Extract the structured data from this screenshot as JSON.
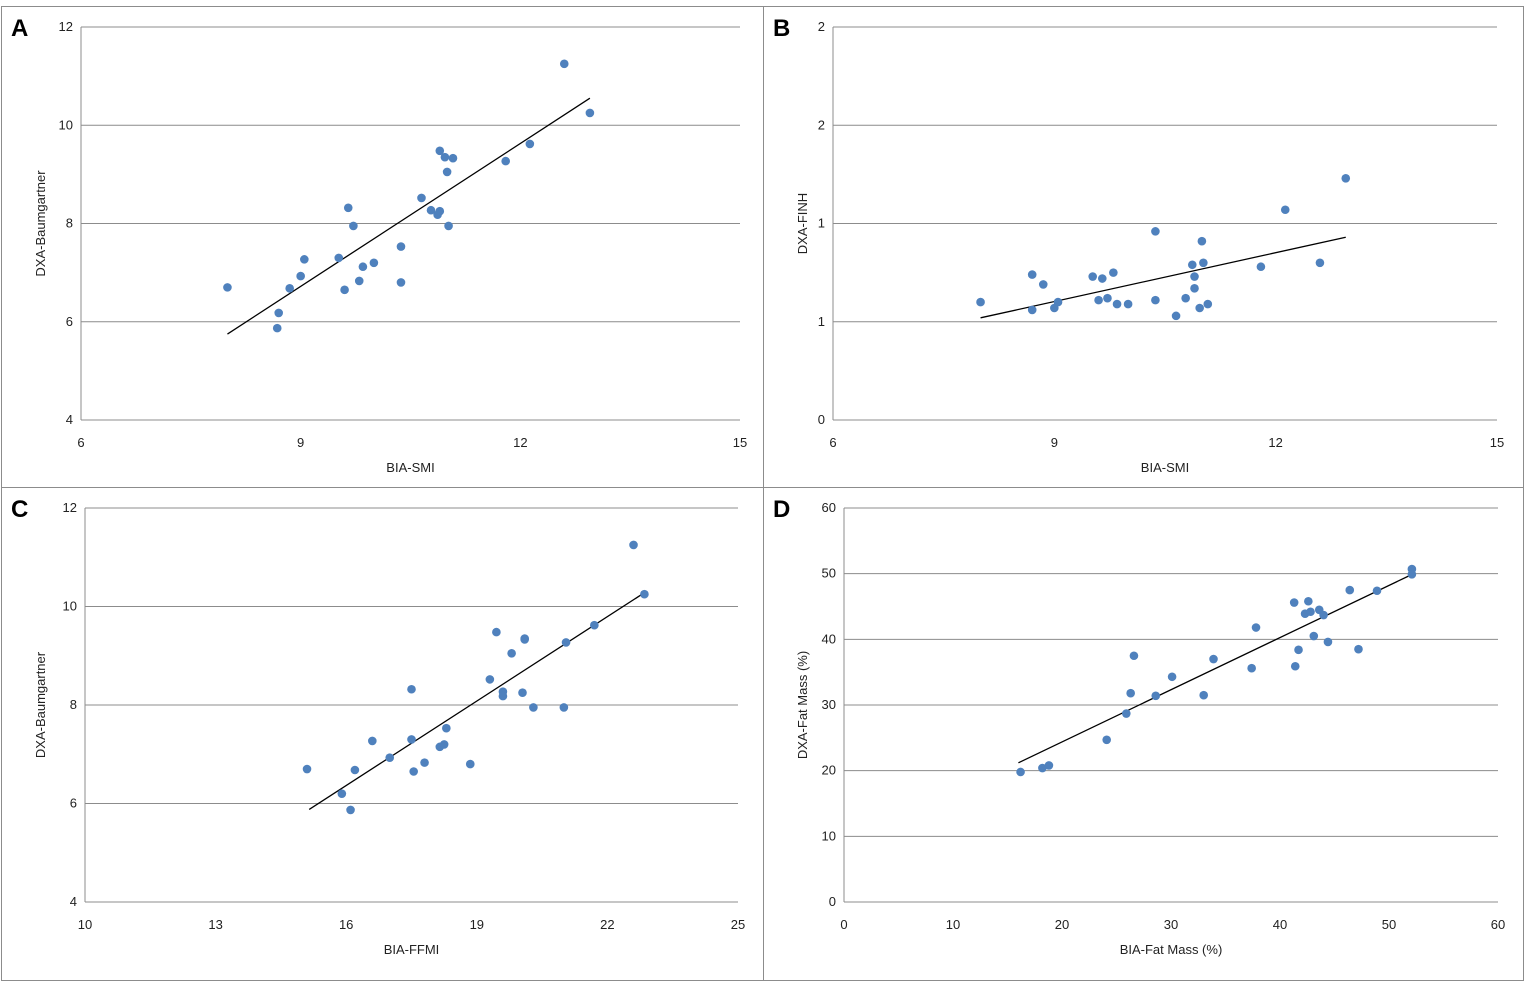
{
  "figure": {
    "colors": {
      "point": "#4f81bd",
      "grid": "#8c8c8c",
      "trend": "#000000"
    }
  },
  "chart_data": [
    {
      "id": "A",
      "label": "A",
      "type": "scatter",
      "xlabel": "BIA-SMI",
      "ylabel": "DXA-Baumgartner",
      "xlim": [
        6,
        15
      ],
      "ylim": [
        4,
        12
      ],
      "xticks": [
        6,
        9,
        12,
        15
      ],
      "yticks": [
        4,
        6,
        8,
        10,
        12
      ],
      "xtick_labels": [
        "6",
        "9",
        "12",
        "15"
      ],
      "ytick_labels": [
        "4",
        "6",
        "8",
        "10",
        "12"
      ],
      "grid": "horizontal",
      "trendline": [
        [
          8.0,
          5.75
        ],
        [
          12.95,
          10.55
        ]
      ],
      "points": [
        [
          8.0,
          6.7
        ],
        [
          8.7,
          6.18
        ],
        [
          8.68,
          5.87
        ],
        [
          8.85,
          6.68
        ],
        [
          9.0,
          6.93
        ],
        [
          9.05,
          7.27
        ],
        [
          9.52,
          7.3
        ],
        [
          9.6,
          6.65
        ],
        [
          9.65,
          8.32
        ],
        [
          9.72,
          7.95
        ],
        [
          9.8,
          6.83
        ],
        [
          9.85,
          7.12
        ],
        [
          10.0,
          7.2
        ],
        [
          10.37,
          7.53
        ],
        [
          10.37,
          6.8
        ],
        [
          10.65,
          8.52
        ],
        [
          10.78,
          8.27
        ],
        [
          10.87,
          8.18
        ],
        [
          10.9,
          8.25
        ],
        [
          10.9,
          9.48
        ],
        [
          10.97,
          9.35
        ],
        [
          11.0,
          9.05
        ],
        [
          11.02,
          7.95
        ],
        [
          11.08,
          9.33
        ],
        [
          11.8,
          9.27
        ],
        [
          12.13,
          9.62
        ],
        [
          12.6,
          11.25
        ],
        [
          12.95,
          10.25
        ]
      ]
    },
    {
      "id": "B",
      "label": "B",
      "type": "scatter",
      "xlabel": "BIA-SMI",
      "ylabel": "DXA-FINH",
      "xlim": [
        6,
        15
      ],
      "ylim": [
        0,
        2
      ],
      "xticks": [
        6,
        9,
        12,
        15
      ],
      "yticks": [
        0,
        0.5,
        1,
        1.5,
        2
      ],
      "xtick_labels": [
        "6",
        "9",
        "12",
        "15"
      ],
      "ytick_labels": [
        "0",
        "1",
        "1",
        "2",
        "2"
      ],
      "grid": "horizontal",
      "trendline": [
        [
          8.0,
          0.52
        ],
        [
          12.95,
          0.93
        ]
      ],
      "points": [
        [
          8.0,
          0.6
        ],
        [
          8.7,
          0.56
        ],
        [
          8.7,
          0.74
        ],
        [
          8.85,
          0.69
        ],
        [
          9.0,
          0.57
        ],
        [
          9.05,
          0.6
        ],
        [
          9.52,
          0.73
        ],
        [
          9.6,
          0.61
        ],
        [
          9.65,
          0.72
        ],
        [
          9.72,
          0.62
        ],
        [
          9.8,
          0.75
        ],
        [
          9.85,
          0.59
        ],
        [
          10.0,
          0.59
        ],
        [
          10.37,
          0.61
        ],
        [
          10.37,
          0.96
        ],
        [
          10.65,
          0.53
        ],
        [
          10.78,
          0.62
        ],
        [
          10.87,
          0.79
        ],
        [
          10.9,
          0.67
        ],
        [
          10.9,
          0.73
        ],
        [
          10.97,
          0.57
        ],
        [
          11.0,
          0.91
        ],
        [
          11.02,
          0.8
        ],
        [
          11.08,
          0.59
        ],
        [
          11.8,
          0.78
        ],
        [
          12.13,
          1.07
        ],
        [
          12.6,
          0.8
        ],
        [
          12.95,
          1.23
        ]
      ]
    },
    {
      "id": "C",
      "label": "C",
      "type": "scatter",
      "xlabel": "BIA-FFMI",
      "ylabel": "DXA-Baumgartner",
      "xlim": [
        10,
        25
      ],
      "ylim": [
        4,
        12
      ],
      "xticks": [
        10,
        13,
        16,
        19,
        22,
        25
      ],
      "yticks": [
        4,
        6,
        8,
        10,
        12
      ],
      "xtick_labels": [
        "10",
        "13",
        "16",
        "19",
        "22",
        "25"
      ],
      "ytick_labels": [
        "4",
        "6",
        "8",
        "10",
        "12"
      ],
      "grid": "horizontal",
      "trendline": [
        [
          15.15,
          5.88
        ],
        [
          22.85,
          10.28
        ]
      ],
      "points": [
        [
          15.1,
          6.7
        ],
        [
          15.9,
          6.2
        ],
        [
          16.1,
          5.87
        ],
        [
          16.2,
          6.68
        ],
        [
          16.6,
          7.27
        ],
        [
          17.0,
          6.93
        ],
        [
          17.5,
          7.3
        ],
        [
          17.5,
          8.32
        ],
        [
          17.55,
          6.65
        ],
        [
          17.8,
          6.83
        ],
        [
          18.15,
          7.15
        ],
        [
          18.25,
          7.2
        ],
        [
          18.3,
          7.53
        ],
        [
          18.85,
          6.8
        ],
        [
          19.3,
          8.52
        ],
        [
          19.45,
          9.48
        ],
        [
          19.6,
          8.27
        ],
        [
          19.6,
          8.18
        ],
        [
          19.8,
          9.05
        ],
        [
          20.05,
          8.25
        ],
        [
          20.1,
          9.35
        ],
        [
          20.1,
          9.33
        ],
        [
          20.3,
          7.95
        ],
        [
          21.0,
          7.95
        ],
        [
          21.05,
          9.27
        ],
        [
          21.7,
          9.62
        ],
        [
          22.6,
          11.25
        ],
        [
          22.85,
          10.25
        ]
      ]
    },
    {
      "id": "D",
      "label": "D",
      "type": "scatter",
      "xlabel": "BIA-Fat Mass (%)",
      "ylabel": "DXA-Fat Mass (%)",
      "xlim": [
        0,
        60
      ],
      "ylim": [
        0,
        60
      ],
      "xticks": [
        0,
        10,
        20,
        30,
        40,
        50,
        60
      ],
      "yticks": [
        0,
        10,
        20,
        30,
        40,
        50,
        60
      ],
      "xtick_labels": [
        "0",
        "10",
        "20",
        "30",
        "40",
        "50",
        "60"
      ],
      "ytick_labels": [
        "0",
        "10",
        "20",
        "30",
        "40",
        "50",
        "60"
      ],
      "grid": "horizontal",
      "trendline": [
        [
          16.0,
          21.2
        ],
        [
          52.0,
          49.8
        ]
      ],
      "points": [
        [
          16.2,
          19.8
        ],
        [
          18.2,
          20.4
        ],
        [
          18.8,
          20.8
        ],
        [
          24.1,
          24.7
        ],
        [
          25.9,
          28.7
        ],
        [
          26.3,
          31.8
        ],
        [
          26.6,
          37.5
        ],
        [
          28.6,
          31.4
        ],
        [
          30.1,
          34.3
        ],
        [
          33.0,
          31.5
        ],
        [
          33.9,
          37.0
        ],
        [
          37.4,
          35.6
        ],
        [
          37.8,
          41.8
        ],
        [
          41.3,
          45.6
        ],
        [
          41.4,
          35.9
        ],
        [
          41.7,
          38.4
        ],
        [
          42.3,
          43.9
        ],
        [
          42.6,
          45.8
        ],
        [
          42.8,
          44.2
        ],
        [
          43.1,
          40.5
        ],
        [
          43.6,
          44.5
        ],
        [
          44.0,
          43.7
        ],
        [
          44.4,
          39.6
        ],
        [
          46.4,
          47.5
        ],
        [
          47.2,
          38.5
        ],
        [
          48.9,
          47.4
        ],
        [
          52.1,
          50.7
        ],
        [
          52.1,
          49.9
        ]
      ]
    }
  ]
}
